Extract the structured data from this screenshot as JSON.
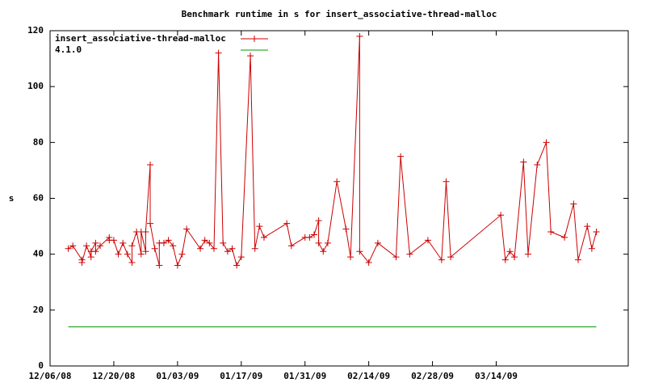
{
  "chart_data": {
    "type": "line",
    "title": "Benchmark runtime in s for insert_associative-thread-malloc",
    "y_label": "s",
    "xlim": [
      "2008-12-06",
      "2009-04-12"
    ],
    "xticks": [
      {
        "value": "2008-12-06",
        "label": "12/06/08"
      },
      {
        "value": "2008-12-20",
        "label": "12/20/08"
      },
      {
        "value": "2009-01-03",
        "label": "01/03/09"
      },
      {
        "value": "2009-01-17",
        "label": "01/17/09"
      },
      {
        "value": "2009-01-31",
        "label": "01/31/09"
      },
      {
        "value": "2009-02-14",
        "label": "02/14/09"
      },
      {
        "value": "2009-02-28",
        "label": "02/28/09"
      },
      {
        "value": "2009-03-14",
        "label": "03/14/09"
      }
    ],
    "ylim": [
      0,
      120
    ],
    "yticks": [
      0,
      20,
      40,
      60,
      80,
      100,
      120
    ],
    "legend": "top-left",
    "series": [
      {
        "name": "insert_associative-thread-malloc",
        "color": "#cc0000",
        "marker": "plus",
        "x": [
          "2008-12-10",
          "2008-12-11",
          "2008-12-13",
          "2008-12-13",
          "2008-12-14",
          "2008-12-15",
          "2008-12-15",
          "2008-12-16",
          "2008-12-16",
          "2008-12-17",
          "2008-12-19",
          "2008-12-19",
          "2008-12-20",
          "2008-12-21",
          "2008-12-22",
          "2008-12-23",
          "2008-12-24",
          "2008-12-24",
          "2008-12-25",
          "2008-12-26",
          "2008-12-26",
          "2008-12-27",
          "2008-12-27",
          "2008-12-28",
          "2008-12-28",
          "2008-12-29",
          "2008-12-30",
          "2008-12-30",
          "2008-12-31",
          "2009-01-01",
          "2009-01-02",
          "2009-01-03",
          "2009-01-04",
          "2009-01-05",
          "2009-01-08",
          "2009-01-09",
          "2009-01-10",
          "2009-01-11",
          "2009-01-12",
          "2009-01-13",
          "2009-01-14",
          "2009-01-15",
          "2009-01-16",
          "2009-01-17",
          "2009-01-19",
          "2009-01-20",
          "2009-01-21",
          "2009-01-22",
          "2009-01-27",
          "2009-01-28",
          "2009-01-31",
          "2009-02-01",
          "2009-02-02",
          "2009-02-03",
          "2009-02-03",
          "2009-02-04",
          "2009-02-05",
          "2009-02-07",
          "2009-02-09",
          "2009-02-10",
          "2009-02-12",
          "2009-02-12",
          "2009-02-14",
          "2009-02-16",
          "2009-02-20",
          "2009-02-21",
          "2009-02-23",
          "2009-02-27",
          "2009-03-02",
          "2009-03-03",
          "2009-03-04",
          "2009-03-15",
          "2009-03-16",
          "2009-03-17",
          "2009-03-18",
          "2009-03-20",
          "2009-03-21",
          "2009-03-23",
          "2009-03-25",
          "2009-03-26",
          "2009-03-29",
          "2009-03-31",
          "2009-04-01",
          "2009-04-03",
          "2009-04-04",
          "2009-04-05"
        ],
        "values": [
          42,
          43,
          38,
          37,
          43,
          39,
          41,
          44,
          41,
          43,
          46,
          45,
          45,
          40,
          44,
          40,
          37,
          43,
          48,
          40,
          48,
          41,
          48,
          72,
          51,
          42,
          36,
          44,
          44,
          45,
          43,
          36,
          40,
          49,
          42,
          45,
          44,
          42,
          112,
          44,
          41,
          42,
          36,
          39,
          111,
          42,
          50,
          46,
          51,
          43,
          46,
          46,
          47,
          52,
          44,
          41,
          44,
          66,
          49,
          39,
          118,
          41,
          37,
          44,
          39,
          75,
          40,
          45,
          38,
          66,
          39,
          54,
          38,
          41,
          39,
          73,
          40,
          72,
          80,
          48,
          46,
          58,
          38,
          50,
          42,
          48
        ]
      },
      {
        "name": "4.1.0",
        "color": "#009900",
        "marker": "none",
        "x": [
          "2008-12-10",
          "2009-04-05"
        ],
        "values": [
          14,
          14
        ]
      }
    ]
  }
}
